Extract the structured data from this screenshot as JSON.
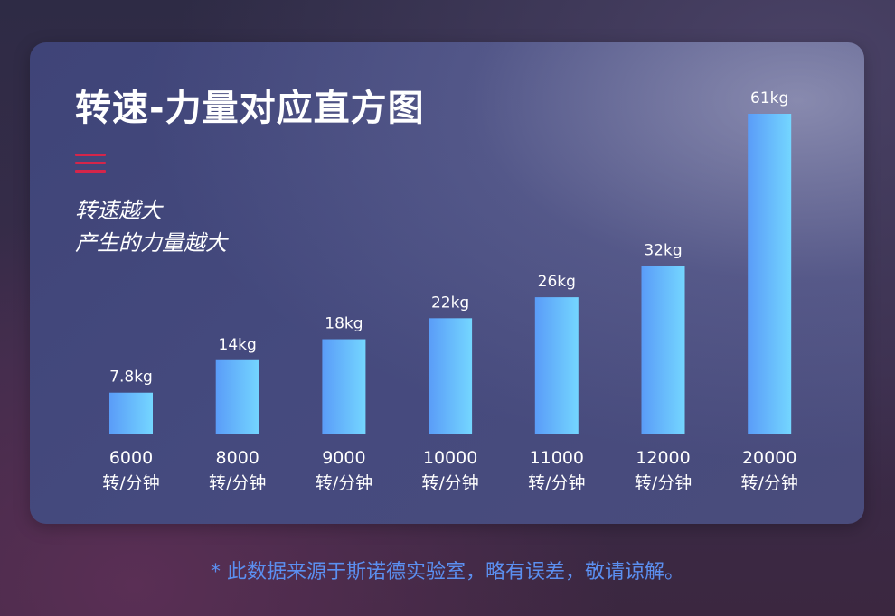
{
  "title": "转速-力量对应直方图",
  "subtitle_lines": [
    "转速越大",
    "产生的力量越大"
  ],
  "icons": {
    "menu": "menu-lines-icon"
  },
  "colors": {
    "bar_start": "#5a9cf8",
    "bar_end": "#74d6ff",
    "accent": "#d5254a",
    "footnote": "#5b8ff0"
  },
  "chart_data": {
    "type": "bar",
    "title": "转速-力量对应直方图",
    "categories": [
      "6000",
      "8000",
      "9000",
      "10000",
      "11000",
      "12000",
      "20000"
    ],
    "category_unit": "转/分钟",
    "values": [
      7.8,
      14,
      18,
      22,
      26,
      32,
      61
    ],
    "value_labels": [
      "7.8kg",
      "14kg",
      "18kg",
      "22kg",
      "26kg",
      "32kg",
      "61kg"
    ],
    "value_unit": "kg",
    "xlabel": "",
    "ylabel": "",
    "ylim": [
      0,
      61
    ],
    "grid": false,
    "legend": "none"
  },
  "footnote": "* 此数据来源于斯诺德实验室，略有误差，敬请谅解。"
}
